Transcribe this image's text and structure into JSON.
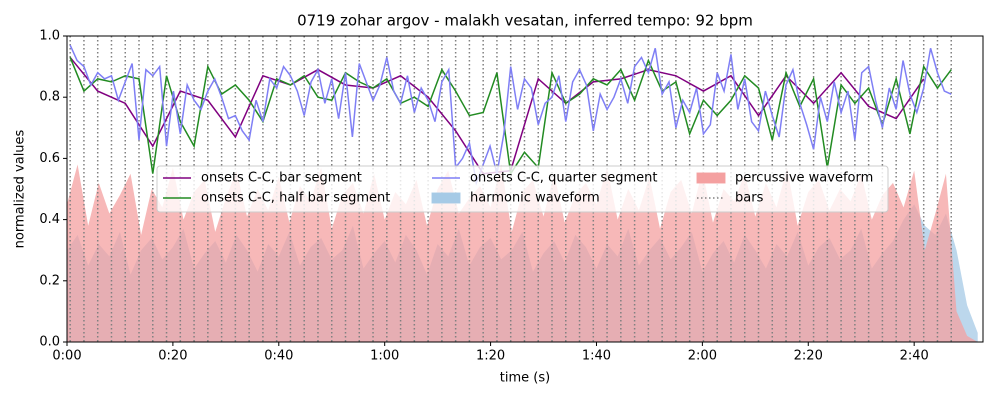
{
  "chart_data": {
    "type": "line",
    "title": "0719 zohar argov - malakh vesatan, inferred tempo: 92 bpm",
    "x_label": "time (s)",
    "y_label": "normalized values",
    "xlim": [
      0,
      173
    ],
    "ylim": [
      0,
      1
    ],
    "xticks": [
      {
        "value": 0,
        "label": "0:00"
      },
      {
        "value": 20,
        "label": "0:20"
      },
      {
        "value": 40,
        "label": "0:40"
      },
      {
        "value": 60,
        "label": "1:00"
      },
      {
        "value": 80,
        "label": "1:20"
      },
      {
        "value": 100,
        "label": "1:40"
      },
      {
        "value": 120,
        "label": "2:00"
      },
      {
        "value": 140,
        "label": "2:20"
      },
      {
        "value": 160,
        "label": "2:40"
      }
    ],
    "yticks": [
      {
        "value": 0,
        "label": "0.0"
      },
      {
        "value": 0.2,
        "label": "0.2"
      },
      {
        "value": 0.4,
        "label": "0.4"
      },
      {
        "value": 0.6,
        "label": "0.6"
      },
      {
        "value": 0.8,
        "label": "0.8"
      },
      {
        "value": 1,
        "label": "1.0"
      }
    ],
    "legend": "upper center",
    "series": [
      {
        "name": "onsets C-C, bar segment",
        "color": "#800080",
        "style": "line",
        "x": [
          0.6,
          5.8,
          11,
          16.2,
          21.4,
          26.6,
          31.8,
          37,
          42.2,
          47.4,
          52.6,
          57.8,
          63,
          68.2,
          73.4,
          78.6,
          83.8,
          89,
          94.2,
          99.4,
          104.6,
          109.8,
          115,
          120.2,
          125.4,
          130.6,
          135.8,
          141,
          146.2,
          151.4,
          156.6,
          161.8
        ],
        "values": [
          0.93,
          0.82,
          0.78,
          0.64,
          0.82,
          0.79,
          0.67,
          0.87,
          0.84,
          0.89,
          0.84,
          0.83,
          0.87,
          0.8,
          0.69,
          0.55,
          0.56,
          0.86,
          0.78,
          0.85,
          0.86,
          0.89,
          0.87,
          0.82,
          0.87,
          0.74,
          0.87,
          0.78,
          0.88,
          0.77,
          0.73,
          0.86
        ]
      },
      {
        "name": "onsets C-C, half bar segment",
        "color": "#228b22",
        "style": "line",
        "x": [
          0.6,
          3.2,
          5.8,
          8.4,
          11,
          13.6,
          16.2,
          18.8,
          21.4,
          24,
          26.6,
          29.2,
          31.8,
          34.4,
          37,
          39.6,
          42.2,
          44.8,
          47.4,
          50,
          52.6,
          55.2,
          57.8,
          60.4,
          63,
          65.6,
          68.2,
          70.8,
          73.4,
          76,
          78.6,
          81.2,
          83.8,
          86.4,
          89,
          91.6,
          94.2,
          96.8,
          99.4,
          102,
          104.6,
          107.2,
          109.8,
          112.4,
          115,
          117.6,
          120.2,
          122.8,
          125.4,
          128,
          130.6,
          133.2,
          135.8,
          138.4,
          141,
          143.6,
          146.2,
          148.8,
          151.4,
          154,
          156.6,
          159.2,
          161.8,
          164.4,
          167
        ],
        "values": [
          0.93,
          0.82,
          0.86,
          0.85,
          0.87,
          0.86,
          0.55,
          0.87,
          0.72,
          0.64,
          0.9,
          0.81,
          0.84,
          0.79,
          0.72,
          0.86,
          0.84,
          0.87,
          0.8,
          0.79,
          0.88,
          0.85,
          0.83,
          0.86,
          0.78,
          0.8,
          0.77,
          0.89,
          0.82,
          0.74,
          0.75,
          0.88,
          0.55,
          0.62,
          0.57,
          0.88,
          0.78,
          0.81,
          0.86,
          0.84,
          0.89,
          0.79,
          0.92,
          0.82,
          0.85,
          0.68,
          0.79,
          0.74,
          0.79,
          0.87,
          0.83,
          0.66,
          0.88,
          0.77,
          0.86,
          0.57,
          0.84,
          0.78,
          0.83,
          0.71,
          0.86,
          0.68,
          0.9,
          0.83,
          0.89
        ]
      },
      {
        "name": "onsets C-C, quarter segment",
        "color": "#7f7ff5",
        "style": "line",
        "x": [
          0.6,
          1.9,
          3.2,
          4.5,
          5.8,
          7.1,
          8.4,
          9.7,
          11,
          12.3,
          13.6,
          14.9,
          16.2,
          17.5,
          18.8,
          20.1,
          21.4,
          22.7,
          24,
          25.3,
          26.6,
          27.9,
          29.2,
          30.5,
          31.8,
          33.1,
          34.4,
          35.7,
          37,
          38.3,
          39.6,
          40.9,
          42.2,
          43.5,
          44.8,
          46.1,
          47.4,
          48.7,
          50,
          51.3,
          52.6,
          53.9,
          55.2,
          56.5,
          57.8,
          59.1,
          60.4,
          61.7,
          63,
          64.3,
          65.6,
          66.9,
          68.2,
          69.5,
          70.8,
          72.1,
          73.4,
          74.7,
          76,
          77.3,
          78.6,
          79.9,
          81.2,
          82.5,
          83.8,
          85.1,
          86.4,
          87.7,
          89,
          90.3,
          91.6,
          92.9,
          94.2,
          95.5,
          96.8,
          98.1,
          99.4,
          100.7,
          102,
          103.3,
          104.6,
          105.9,
          107.2,
          108.5,
          109.8,
          111.1,
          112.4,
          113.7,
          115,
          116.3,
          117.6,
          118.9,
          120.2,
          121.5,
          122.8,
          124.1,
          125.4,
          126.7,
          128,
          129.3,
          130.6,
          131.9,
          133.2,
          134.5,
          135.8,
          137.1,
          138.4,
          139.7,
          141,
          142.3,
          143.6,
          144.9,
          146.2,
          147.5,
          148.8,
          150.1,
          151.4,
          152.7,
          154,
          155.3,
          156.6,
          157.9,
          159.2,
          160.5,
          161.8,
          163.1,
          164.4,
          165.7,
          167
        ],
        "values": [
          0.97,
          0.92,
          0.9,
          0.84,
          0.88,
          0.86,
          0.87,
          0.79,
          0.85,
          0.91,
          0.66,
          0.89,
          0.87,
          0.9,
          0.64,
          0.82,
          0.68,
          0.84,
          0.79,
          0.76,
          0.82,
          0.86,
          0.8,
          0.73,
          0.74,
          0.69,
          0.66,
          0.79,
          0.72,
          0.86,
          0.83,
          0.9,
          0.87,
          0.82,
          0.74,
          0.85,
          0.89,
          0.78,
          0.86,
          0.73,
          0.88,
          0.67,
          0.91,
          0.85,
          0.79,
          0.84,
          0.93,
          0.82,
          0.78,
          0.87,
          0.75,
          0.83,
          0.79,
          0.72,
          0.85,
          0.89,
          0.57,
          0.6,
          0.65,
          0.52,
          0.58,
          0.64,
          0.55,
          0.68,
          0.9,
          0.76,
          0.86,
          0.83,
          0.71,
          0.78,
          0.8,
          0.87,
          0.72,
          0.85,
          0.89,
          0.84,
          0.69,
          0.81,
          0.76,
          0.8,
          0.86,
          0.78,
          0.9,
          0.93,
          0.88,
          0.96,
          0.81,
          0.85,
          0.7,
          0.79,
          0.75,
          0.83,
          0.68,
          0.71,
          0.88,
          0.82,
          0.94,
          0.76,
          0.86,
          0.72,
          0.69,
          0.82,
          0.74,
          0.67,
          0.84,
          0.89,
          0.78,
          0.71,
          0.63,
          0.8,
          0.72,
          0.85,
          0.75,
          0.82,
          0.66,
          0.88,
          0.9,
          0.79,
          0.7,
          0.83,
          0.76,
          0.92,
          0.81,
          0.75,
          0.83,
          0.96,
          0.88,
          0.82,
          0.81
        ]
      },
      {
        "name": "harmonic waveform",
        "color": "#a6cae6",
        "style": "area",
        "x": [
          0,
          2,
          4,
          6,
          8,
          10,
          12,
          14,
          16,
          18,
          20,
          22,
          24,
          26,
          28,
          30,
          32,
          34,
          36,
          38,
          40,
          42,
          44,
          46,
          48,
          50,
          52,
          54,
          56,
          58,
          60,
          62,
          64,
          66,
          68,
          70,
          72,
          74,
          76,
          78,
          80,
          82,
          84,
          86,
          88,
          90,
          92,
          94,
          96,
          98,
          100,
          102,
          104,
          106,
          108,
          110,
          112,
          114,
          116,
          118,
          120,
          122,
          124,
          126,
          128,
          130,
          132,
          134,
          136,
          138,
          140,
          142,
          144,
          146,
          148,
          150,
          152,
          154,
          156,
          158,
          160,
          162,
          164,
          166,
          168,
          170,
          172
        ],
        "values": [
          0.3,
          0.35,
          0.25,
          0.32,
          0.28,
          0.36,
          0.22,
          0.3,
          0.34,
          0.27,
          0.31,
          0.37,
          0.24,
          0.29,
          0.33,
          0.26,
          0.35,
          0.3,
          0.23,
          0.32,
          0.28,
          0.36,
          0.25,
          0.31,
          0.34,
          0.27,
          0.3,
          0.38,
          0.24,
          0.29,
          0.33,
          0.26,
          0.35,
          0.3,
          0.22,
          0.32,
          0.28,
          0.37,
          0.25,
          0.31,
          0.34,
          0.27,
          0.3,
          0.36,
          0.23,
          0.29,
          0.33,
          0.26,
          0.35,
          0.31,
          0.24,
          0.32,
          0.28,
          0.37,
          0.25,
          0.3,
          0.34,
          0.27,
          0.31,
          0.36,
          0.23,
          0.29,
          0.33,
          0.26,
          0.35,
          0.3,
          0.24,
          0.32,
          0.28,
          0.36,
          0.25,
          0.31,
          0.34,
          0.27,
          0.3,
          0.37,
          0.24,
          0.29,
          0.33,
          0.4,
          0.45,
          0.38,
          0.35,
          0.42,
          0.3,
          0.12,
          0.03
        ]
      },
      {
        "name": "percussive waveform",
        "color": "#f4a0a0",
        "style": "area",
        "x": [
          0,
          2,
          4,
          6,
          8,
          10,
          12,
          14,
          16,
          18,
          20,
          22,
          24,
          26,
          28,
          30,
          32,
          34,
          36,
          38,
          40,
          42,
          44,
          46,
          48,
          50,
          52,
          54,
          56,
          58,
          60,
          62,
          64,
          66,
          68,
          70,
          72,
          74,
          76,
          78,
          80,
          82,
          84,
          86,
          88,
          90,
          92,
          94,
          96,
          98,
          100,
          102,
          104,
          106,
          108,
          110,
          112,
          114,
          116,
          118,
          120,
          122,
          124,
          126,
          128,
          130,
          132,
          134,
          136,
          138,
          140,
          142,
          144,
          146,
          148,
          150,
          152,
          154,
          156,
          158,
          160,
          162,
          164,
          166,
          168,
          170,
          172
        ],
        "values": [
          0.45,
          0.58,
          0.38,
          0.52,
          0.42,
          0.48,
          0.55,
          0.35,
          0.5,
          0.44,
          0.57,
          0.4,
          0.49,
          0.53,
          0.36,
          0.47,
          0.56,
          0.41,
          0.5,
          0.43,
          0.54,
          0.39,
          0.51,
          0.46,
          0.57,
          0.37,
          0.48,
          0.52,
          0.42,
          0.55,
          0.4,
          0.49,
          0.45,
          0.53,
          0.38,
          0.5,
          0.56,
          0.42,
          0.47,
          0.51,
          0.44,
          0.58,
          0.36,
          0.49,
          0.53,
          0.41,
          0.55,
          0.39,
          0.48,
          0.52,
          0.45,
          0.57,
          0.4,
          0.5,
          0.43,
          0.54,
          0.37,
          0.49,
          0.53,
          0.42,
          0.56,
          0.39,
          0.5,
          0.46,
          0.55,
          0.41,
          0.52,
          0.44,
          0.57,
          0.38,
          0.49,
          0.53,
          0.43,
          0.5,
          0.46,
          0.55,
          0.4,
          0.48,
          0.52,
          0.44,
          0.56,
          0.3,
          0.42,
          0.55,
          0.1,
          0.02,
          0
        ]
      }
    ],
    "bars": {
      "name": "bars",
      "color": "#808080",
      "x": [
        0.6,
        3.2,
        5.8,
        8.4,
        11,
        13.6,
        16.2,
        18.8,
        21.4,
        24,
        26.6,
        29.2,
        31.8,
        34.4,
        37,
        39.6,
        42.2,
        44.8,
        47.4,
        50,
        52.6,
        55.2,
        57.8,
        60.4,
        63,
        65.6,
        68.2,
        70.8,
        73.4,
        76,
        78.6,
        81.2,
        83.8,
        86.4,
        89,
        91.6,
        94.2,
        96.8,
        99.4,
        102,
        104.6,
        107.2,
        109.8,
        112.4,
        115,
        117.6,
        120.2,
        122.8,
        125.4,
        128,
        130.6,
        133.2,
        135.8,
        138.4,
        141,
        143.6,
        146.2,
        148.8,
        151.4,
        154,
        156.6,
        159.2,
        161.8,
        164.4,
        167
      ]
    }
  }
}
